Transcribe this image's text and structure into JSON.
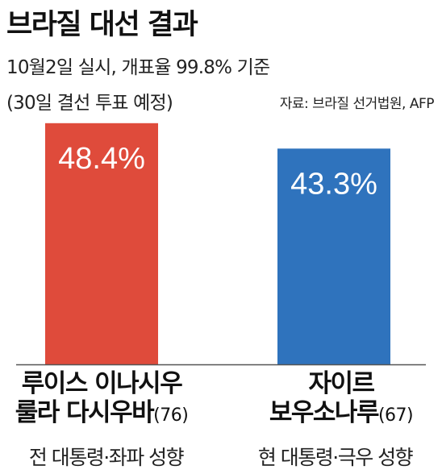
{
  "title": "브라질 대선 결과",
  "subtitle": "10월2일 실시, 개표율 99.8% 기준",
  "note": "(30일 결선 투표 예정)",
  "source": "자료: 브라질 선거법원, AFP",
  "colors": {
    "lula": "#df4b3b",
    "bolsonaro": "#2f73bd",
    "baseline": "#555555"
  },
  "chart_data": {
    "type": "bar",
    "unit": "%",
    "categories": [
      "루이스 이나시우 룰라 다시우바(76)",
      "자이르 보우소나루(67)"
    ],
    "values": [
      48.4,
      43.3
    ],
    "data_labels": [
      "48.4%",
      "43.3%"
    ],
    "ylim": [
      0,
      55
    ],
    "grid": false,
    "legend": "none",
    "candidates": [
      {
        "line1": "루이스 이나시우",
        "line2": "룰라 다시우바",
        "age": "(76)",
        "desc": "전 대통령·좌파 성향"
      },
      {
        "line1": "자이르",
        "line2": "보우소나루",
        "age": "(67)",
        "desc": "현 대통령·극우 성향"
      }
    ]
  }
}
